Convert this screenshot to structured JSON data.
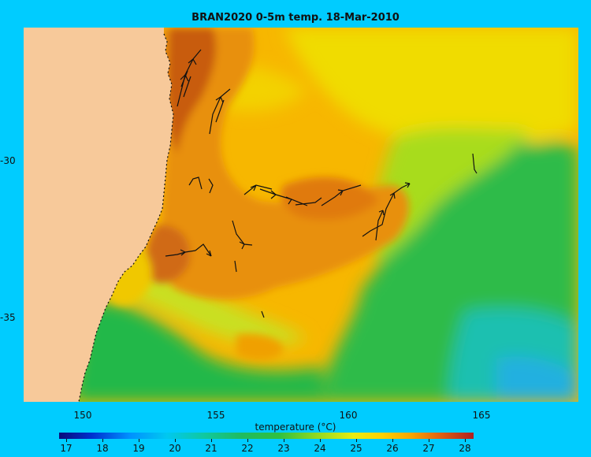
{
  "title": "BRAN2020 0-5m temp. 18-Mar-2010",
  "yaxis": {
    "ticks": [
      "-30",
      "-35"
    ]
  },
  "xaxis": {
    "ticks": [
      "150",
      "155",
      "160",
      "165"
    ]
  },
  "colorbar": {
    "label": "temperature (°C)",
    "ticks": [
      "17",
      "18",
      "19",
      "20",
      "21",
      "22",
      "23",
      "24",
      "25",
      "26",
      "27",
      "28"
    ]
  },
  "colors": {
    "land": "#f7c99a",
    "background": "#00ccff",
    "warm": "#e08a10",
    "hot": "#c05a10",
    "yellow": "#f0e610",
    "green": "#22b84a",
    "teal": "#1cc0b0",
    "vector": "#111111"
  }
}
